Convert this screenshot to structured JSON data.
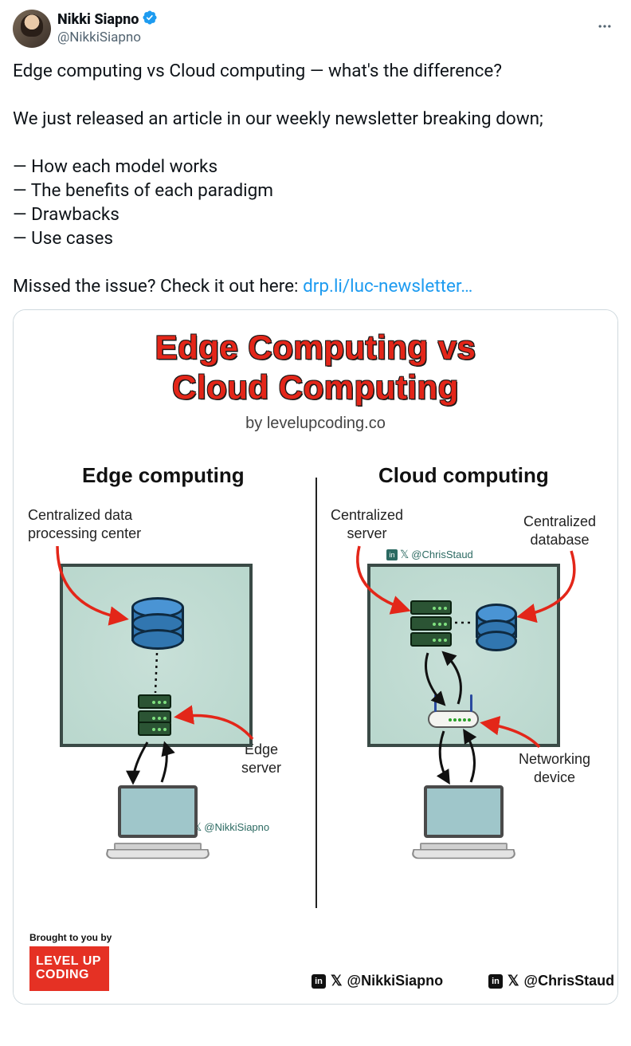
{
  "author": {
    "display_name": "Nikki Siapno",
    "handle": "@NikkiSiapno",
    "verified": true,
    "verified_color": "#1d9bf0"
  },
  "more_menu_label": "More",
  "tweet": {
    "line1": "Edge computing vs Cloud computing — what's the difference?",
    "line2": "We just released an article in our weekly newsletter breaking down;",
    "bullet1": "— How each model works",
    "bullet2": "— The benefits of each paradigm",
    "bullet3": "— Drawbacks",
    "bullet4": "— Use cases",
    "cta_prefix": "Missed the issue? Check it out here: ",
    "cta_link_text": "drp.li/luc-newsletter…",
    "link_color": "#1d9bf0"
  },
  "infographic": {
    "title_line1": "Edge Computing vs",
    "title_line2": "Cloud Computing",
    "title_color": "#e32619",
    "title_outline": "#1a1a1a",
    "byline": "by levelupcoding.co",
    "byline_color": "#444444",
    "background_color": "#ffffff",
    "divider_color": "#222222",
    "greenbox_fill": "#c0dcd2",
    "greenbox_border": "#3a4a46",
    "database_color": "#3176b0",
    "server_color": "#2b5434",
    "laptop_screen_color": "#9fc6ca",
    "laptop_body_color": "#e4e4e4",
    "arrow_red": "#e32619",
    "arrow_black": "#111111",
    "left": {
      "heading": "Edge computing",
      "label_top": "Centralized data\nprocessing center",
      "label_mid": "Edge\nserver",
      "watermark": "@NikkiSiapno"
    },
    "right": {
      "heading": "Cloud computing",
      "label_top_left": "Centralized\nserver",
      "label_top_right": "Centralized\ndatabase",
      "label_bottom": "Networking\ndevice",
      "watermark": "@ChrisStaud"
    },
    "footer": {
      "brought": "Brought to you by",
      "logo_line1": "LEVEL UP",
      "logo_line2": "CODING",
      "logo_bg": "#e53124",
      "credit1": "@NikkiSiapno",
      "credit2": "@ChrisStaud"
    }
  }
}
